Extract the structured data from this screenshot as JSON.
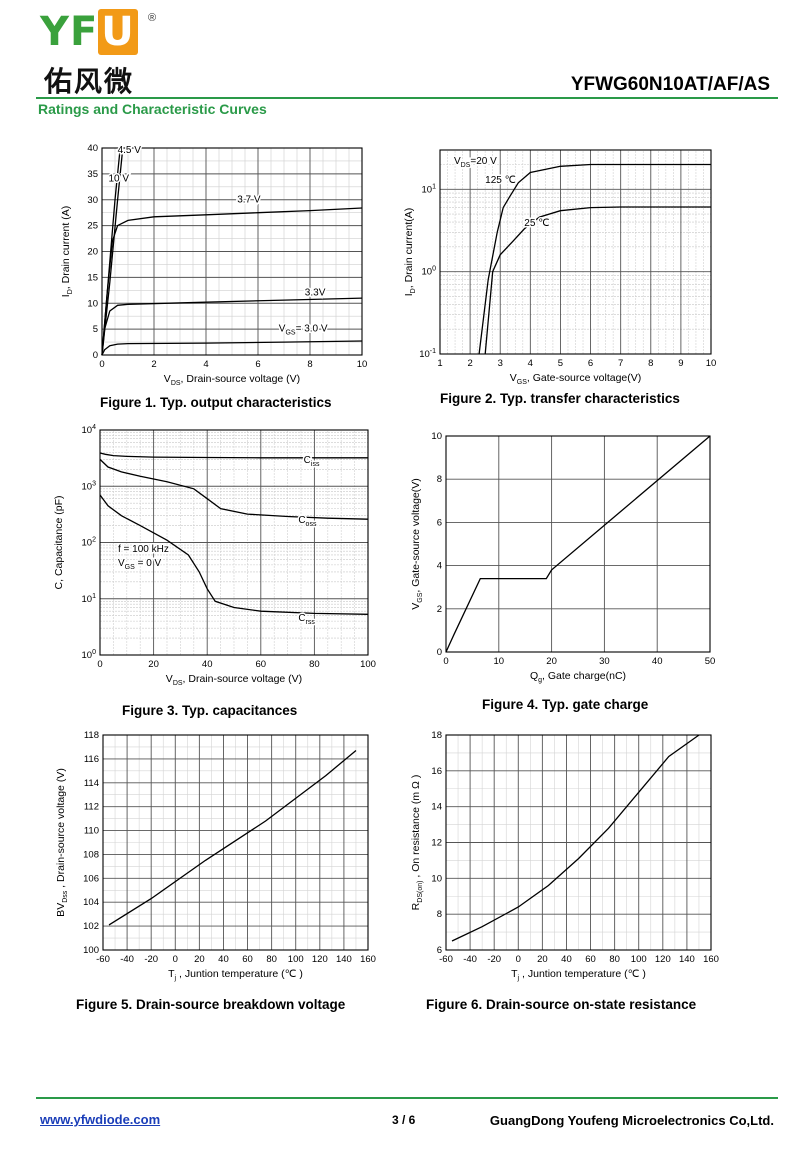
{
  "header": {
    "logo_text": "YFU",
    "logo_cn": "佑风微",
    "registered": "®",
    "part_number": "YFWG60N10AT/AF/AS",
    "section_title": "Ratings and Characteristic Curves"
  },
  "captions": {
    "fig1": "Figure 1. Typ. output characteristics",
    "fig2": "Figure 2. Typ. transfer characteristics",
    "fig3": "Figure 3. Typ. capacitances",
    "fig4": "Figure 4. Typ. gate charge",
    "fig5": "Figure 5. Drain-source breakdown voltage",
    "fig6": "Figure 6. Drain-source on-state resistance"
  },
  "footer": {
    "website": "www.yfwdiode.com",
    "page": "3 / 6",
    "company": "GuangDong Youfeng Microelectronics Co,Ltd."
  },
  "chart_data": [
    {
      "id": "fig1",
      "type": "line",
      "xlabel": "V_DS, Drain-source voltage (V)",
      "ylabel": "I_D, Drain current (A)",
      "xlim": [
        0,
        10
      ],
      "ylim": [
        0,
        40
      ],
      "xticks": [
        0,
        2,
        4,
        6,
        8,
        10
      ],
      "yticks": [
        0,
        5,
        10,
        15,
        20,
        25,
        30,
        35,
        40
      ],
      "grid": true,
      "series": [
        {
          "name": "4.5 V",
          "x": [
            0,
            0.3,
            0.6,
            0.8
          ],
          "y": [
            0,
            14,
            30,
            40
          ]
        },
        {
          "name": "10 V",
          "x": [
            0,
            0.2,
            0.5,
            0.7
          ],
          "y": [
            0,
            12,
            30,
            40
          ]
        },
        {
          "name": "3.7 V",
          "x": [
            0,
            0.2,
            0.4,
            0.6,
            1,
            2,
            4,
            6,
            8,
            10
          ],
          "y": [
            0,
            12,
            22,
            25,
            26,
            26.7,
            27.1,
            27.5,
            27.9,
            28.4
          ]
        },
        {
          "name": "3.3V",
          "x": [
            0,
            0.1,
            0.3,
            0.6,
            1,
            4,
            7,
            10
          ],
          "y": [
            0,
            5,
            8.5,
            9.6,
            9.8,
            10.2,
            10.6,
            11
          ]
        },
        {
          "name": "V_GS= 3.0 V",
          "x": [
            0,
            0.1,
            0.3,
            0.6,
            1,
            4,
            7,
            10
          ],
          "y": [
            0,
            1,
            1.8,
            2.1,
            2.2,
            2.3,
            2.5,
            2.7
          ]
        }
      ]
    },
    {
      "id": "fig2",
      "type": "line",
      "yscale": "log",
      "xlabel": "V_GS, Gate-source voltage(V)",
      "ylabel": "I_D, Drain current(A)",
      "xlim": [
        1,
        10
      ],
      "ylim": [
        0.1,
        30
      ],
      "xticks": [
        1,
        2,
        3,
        4,
        5,
        6,
        7,
        8,
        9,
        10
      ],
      "yticks": [
        0.1,
        1,
        10
      ],
      "grid": true,
      "annotation": "V_DS=20 V",
      "series": [
        {
          "name": "125 ℃",
          "x": [
            2.3,
            2.6,
            2.9,
            3.1,
            3.3,
            3.6,
            4.0,
            5,
            6,
            7,
            8,
            10
          ],
          "y": [
            0.1,
            0.8,
            3,
            6,
            8,
            12,
            16,
            19,
            20,
            20,
            20,
            20
          ]
        },
        {
          "name": "25 ℃",
          "x": [
            2.5,
            2.75,
            3.0,
            3.4,
            3.8,
            4.3,
            5,
            6,
            7,
            8,
            10
          ],
          "y": [
            0.1,
            1,
            1.6,
            2.3,
            3.3,
            4.6,
            5.5,
            6,
            6.1,
            6.1,
            6.1
          ]
        }
      ]
    },
    {
      "id": "fig3",
      "type": "line",
      "yscale": "log",
      "xlabel": "V_DS, Drain-source voltage (V)",
      "ylabel": "C, Capacitance (pF)",
      "xlim": [
        0,
        100
      ],
      "ylim": [
        1,
        10000
      ],
      "xticks": [
        0,
        20,
        40,
        60,
        80,
        100
      ],
      "yticks": [
        1,
        10,
        100,
        1000,
        10000
      ],
      "grid": true,
      "annotations": [
        "f = 100 kHz",
        "V_GS = 0 V"
      ],
      "series": [
        {
          "name": "C_iss",
          "x": [
            0,
            2,
            5,
            10,
            20,
            40,
            60,
            80,
            100
          ],
          "y": [
            3900,
            3700,
            3500,
            3400,
            3300,
            3250,
            3200,
            3200,
            3200
          ]
        },
        {
          "name": "C_oss",
          "x": [
            0,
            3,
            8,
            15,
            25,
            35,
            40,
            45,
            55,
            70,
            85,
            100
          ],
          "y": [
            3000,
            2200,
            1800,
            1500,
            1200,
            900,
            600,
            400,
            320,
            290,
            270,
            260
          ]
        },
        {
          "name": "C_rss",
          "x": [
            0,
            3,
            8,
            15,
            25,
            33,
            37,
            40,
            43,
            50,
            60,
            80,
            100
          ],
          "y": [
            700,
            450,
            300,
            200,
            110,
            60,
            30,
            15,
            9,
            7,
            6,
            5.5,
            5.3
          ]
        }
      ]
    },
    {
      "id": "fig4",
      "type": "line",
      "xlabel": "Q_g, Gate charge(nC)",
      "ylabel": "V_GS, Gate-source voltage(V)",
      "xlim": [
        0,
        50
      ],
      "ylim": [
        0,
        10
      ],
      "xticks": [
        0,
        10,
        20,
        30,
        40,
        50
      ],
      "yticks": [
        0,
        2,
        4,
        6,
        8,
        10
      ],
      "grid": true,
      "series": [
        {
          "name": "V_GS",
          "x": [
            0,
            1.5,
            6.5,
            19,
            20,
            50
          ],
          "y": [
            0,
            0.8,
            3.4,
            3.4,
            3.8,
            10
          ]
        }
      ]
    },
    {
      "id": "fig5",
      "type": "line",
      "xlabel": "T_j , Juntion temperature (℃ )",
      "ylabel": "BV_Dss , Drain-source voltage (V)",
      "xlim": [
        -60,
        160
      ],
      "ylim": [
        100,
        118
      ],
      "xticks": [
        -60,
        -40,
        -20,
        0,
        20,
        40,
        60,
        80,
        100,
        120,
        140,
        160
      ],
      "yticks": [
        100,
        102,
        104,
        106,
        108,
        110,
        112,
        114,
        116,
        118
      ],
      "grid": true,
      "series": [
        {
          "name": "BV_Dss",
          "x": [
            -55,
            -20,
            25,
            75,
            125,
            150
          ],
          "y": [
            102.1,
            104.3,
            107.5,
            110.8,
            114.6,
            116.7
          ]
        }
      ]
    },
    {
      "id": "fig6",
      "type": "line",
      "xlabel": "T_j , Juntion temperature (℃ )",
      "ylabel": "R_DS(on) , On resistance (m Ω )",
      "xlim": [
        -60,
        160
      ],
      "ylim": [
        6,
        18
      ],
      "xticks": [
        -60,
        -40,
        -20,
        0,
        20,
        40,
        60,
        80,
        100,
        120,
        140,
        160
      ],
      "yticks": [
        6,
        8,
        10,
        12,
        14,
        16,
        18
      ],
      "grid": true,
      "series": [
        {
          "name": "R_DS(on)",
          "x": [
            -55,
            -30,
            0,
            25,
            50,
            75,
            100,
            125,
            150
          ],
          "y": [
            6.5,
            7.3,
            8.4,
            9.6,
            11.1,
            12.8,
            14.8,
            16.8,
            18
          ]
        }
      ]
    }
  ]
}
